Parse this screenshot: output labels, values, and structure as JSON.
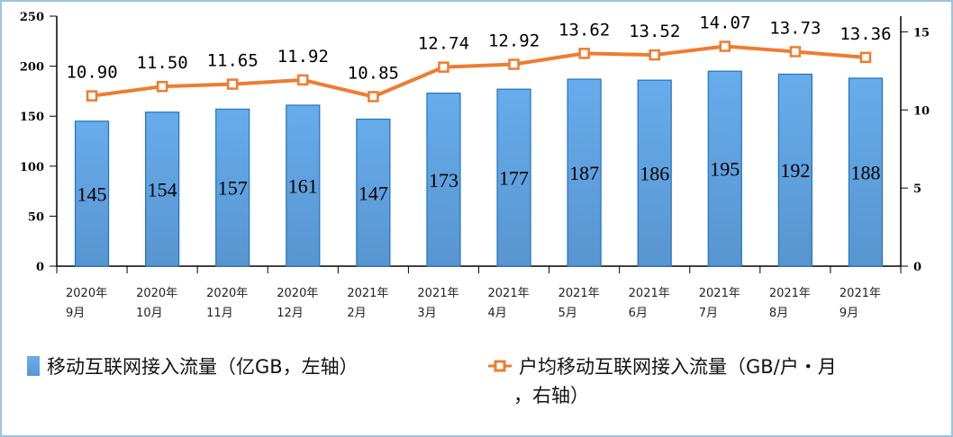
{
  "chart_data": {
    "type": "bar",
    "categories": [
      [
        "2020年",
        "9月"
      ],
      [
        "2020年",
        "10月"
      ],
      [
        "2020年",
        "11月"
      ],
      [
        "2020年",
        "12月"
      ],
      [
        "2021年",
        "2月"
      ],
      [
        "2021年",
        "3月"
      ],
      [
        "2021年",
        "4月"
      ],
      [
        "2021年",
        "5月"
      ],
      [
        "2021年",
        "6月"
      ],
      [
        "2021年",
        "7月"
      ],
      [
        "2021年",
        "8月"
      ],
      [
        "2021年",
        "9月"
      ]
    ],
    "series": [
      {
        "name": "移动互联网接入流量（亿GB，左轴）",
        "type": "bar",
        "axis": "left",
        "color": "#5b9bd5",
        "values": [
          145,
          154,
          157,
          161,
          147,
          173,
          177,
          187,
          186,
          195,
          192,
          188
        ],
        "labels": [
          "145",
          "154",
          "157",
          "161",
          "147",
          "173",
          "177",
          "187",
          "186",
          "195",
          "192",
          "188"
        ]
      },
      {
        "name": "户均移动互联网接入流量（GB/户·月，右轴）",
        "type": "line",
        "axis": "right",
        "color": "#ed7d31",
        "values": [
          10.9,
          11.5,
          11.65,
          11.92,
          10.85,
          12.74,
          12.92,
          13.62,
          13.52,
          14.07,
          13.73,
          13.36
        ],
        "labels": [
          "10.90",
          "11.50",
          "11.65",
          "11.92",
          "10.85",
          "12.74",
          "12.92",
          "13.62",
          "13.52",
          "14.07",
          "13.73",
          "13.36"
        ]
      }
    ],
    "y_left": {
      "range": [
        0,
        250
      ],
      "ticks": [
        "0",
        "50",
        "100",
        "150",
        "200",
        "250"
      ]
    },
    "y_right": {
      "range": [
        0,
        16
      ],
      "ticks": [
        "0",
        "5",
        "10",
        "15"
      ]
    },
    "grid": false,
    "legend_placement": "bottom",
    "legend": {
      "bar": "移动互联网接入流量（亿GB，左轴）",
      "line_1": "户均移动互联网接入流量（GB/户・月",
      "line_2": "，右轴）"
    }
  }
}
